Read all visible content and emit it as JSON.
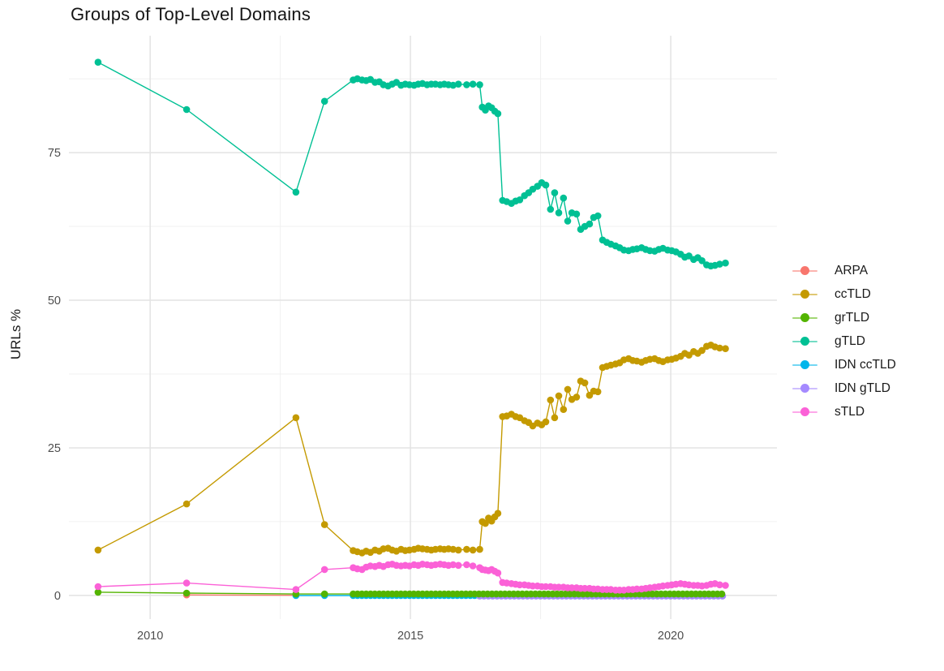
{
  "chart_data": {
    "type": "line",
    "title": "Groups of Top-Level Domains",
    "xlabel": "",
    "ylabel": "URLs %",
    "legend_position": "right",
    "grid": true,
    "background": "#ffffff",
    "grid_major_color": "#e3e3e3",
    "grid_minor_color": "#f0f0f0",
    "axis_text_color": "#4d4d4d",
    "x_axis": {
      "lim": [
        2008.44,
        2022.04
      ],
      "ticks": [
        2010,
        2015,
        2020
      ],
      "tick_labels": [
        "2010",
        "2015",
        "2020"
      ],
      "minor": [
        2012.5,
        2017.5
      ]
    },
    "y_axis": {
      "lim": [
        -4.0,
        94.8
      ],
      "ticks": [
        0,
        25,
        50,
        75
      ],
      "tick_labels": [
        "0",
        "25",
        "50",
        "75"
      ],
      "minor": [
        12.5,
        37.5,
        62.5,
        87.5
      ]
    },
    "draw_order": [
      "ARPA",
      "IDN ccTLD",
      "IDN gTLD",
      "grTLD",
      "sTLD",
      "ccTLD",
      "gTLD"
    ],
    "series": [
      {
        "name": "ARPA",
        "color": "#F8766D",
        "points": [
          [
            2010.7,
            0.1
          ],
          [
            2012.8,
            0.03
          ]
        ]
      },
      {
        "name": "ccTLD",
        "color": "#C49A00",
        "points": [
          [
            2009.0,
            7.7
          ],
          [
            2010.7,
            15.5
          ],
          [
            2012.8,
            30.1
          ],
          [
            2013.35,
            12.0
          ],
          [
            2013.9,
            7.6
          ],
          [
            2013.98,
            7.4
          ],
          [
            2014.07,
            7.2
          ],
          [
            2014.15,
            7.5
          ],
          [
            2014.23,
            7.3
          ],
          [
            2014.32,
            7.7
          ],
          [
            2014.4,
            7.5
          ],
          [
            2014.48,
            7.9
          ],
          [
            2014.57,
            8.0
          ],
          [
            2014.65,
            7.7
          ],
          [
            2014.73,
            7.5
          ],
          [
            2014.82,
            7.8
          ],
          [
            2014.9,
            7.6
          ],
          [
            2014.98,
            7.7
          ],
          [
            2015.07,
            7.8
          ],
          [
            2015.15,
            8.0
          ],
          [
            2015.23,
            7.9
          ],
          [
            2015.32,
            7.8
          ],
          [
            2015.4,
            7.7
          ],
          [
            2015.48,
            7.8
          ],
          [
            2015.57,
            7.9
          ],
          [
            2015.65,
            7.8
          ],
          [
            2015.73,
            7.9
          ],
          [
            2015.82,
            7.8
          ],
          [
            2015.92,
            7.7
          ],
          [
            2016.08,
            7.8
          ],
          [
            2016.2,
            7.7
          ],
          [
            2016.33,
            7.8
          ],
          [
            2016.38,
            12.5
          ],
          [
            2016.44,
            12.2
          ],
          [
            2016.5,
            13.1
          ],
          [
            2016.56,
            12.6
          ],
          [
            2016.62,
            13.3
          ],
          [
            2016.68,
            13.9
          ],
          [
            2016.77,
            30.3
          ],
          [
            2016.85,
            30.4
          ],
          [
            2016.94,
            30.7
          ],
          [
            2017.02,
            30.3
          ],
          [
            2017.1,
            30.1
          ],
          [
            2017.19,
            29.6
          ],
          [
            2017.27,
            29.3
          ],
          [
            2017.35,
            28.7
          ],
          [
            2017.44,
            29.2
          ],
          [
            2017.52,
            28.9
          ],
          [
            2017.6,
            29.4
          ],
          [
            2017.69,
            33.1
          ],
          [
            2017.77,
            30.1
          ],
          [
            2017.85,
            33.8
          ],
          [
            2017.94,
            31.5
          ],
          [
            2018.02,
            34.9
          ],
          [
            2018.1,
            33.2
          ],
          [
            2018.19,
            33.6
          ],
          [
            2018.27,
            36.3
          ],
          [
            2018.35,
            36.0
          ],
          [
            2018.44,
            33.9
          ],
          [
            2018.52,
            34.6
          ],
          [
            2018.6,
            34.5
          ],
          [
            2018.69,
            38.6
          ],
          [
            2018.77,
            38.8
          ],
          [
            2018.85,
            39.0
          ],
          [
            2018.94,
            39.2
          ],
          [
            2019.02,
            39.4
          ],
          [
            2019.1,
            39.9
          ],
          [
            2019.19,
            40.1
          ],
          [
            2019.27,
            39.8
          ],
          [
            2019.35,
            39.7
          ],
          [
            2019.44,
            39.5
          ],
          [
            2019.52,
            39.8
          ],
          [
            2019.6,
            40.0
          ],
          [
            2019.69,
            40.1
          ],
          [
            2019.77,
            39.8
          ],
          [
            2019.85,
            39.6
          ],
          [
            2019.94,
            39.9
          ],
          [
            2020.02,
            40.0
          ],
          [
            2020.1,
            40.2
          ],
          [
            2020.19,
            40.5
          ],
          [
            2020.27,
            41.0
          ],
          [
            2020.35,
            40.7
          ],
          [
            2020.44,
            41.3
          ],
          [
            2020.52,
            41.0
          ],
          [
            2020.6,
            41.5
          ],
          [
            2020.69,
            42.2
          ],
          [
            2020.77,
            42.4
          ],
          [
            2020.85,
            42.1
          ],
          [
            2020.94,
            41.9
          ],
          [
            2021.05,
            41.8
          ]
        ]
      },
      {
        "name": "grTLD",
        "color": "#53B400",
        "points": [
          [
            2009.0,
            0.55
          ],
          [
            2010.7,
            0.4
          ],
          [
            2012.8,
            0.25
          ],
          [
            2013.35,
            0.25
          ]
        ],
        "flat": {
          "from": 2013.9,
          "to": 2021.06,
          "step": 0.0833,
          "value": 0.25
        }
      },
      {
        "name": "gTLD",
        "color": "#00C094",
        "points": [
          [
            2009.0,
            90.3
          ],
          [
            2010.7,
            82.3
          ],
          [
            2012.8,
            68.3
          ],
          [
            2013.35,
            83.7
          ],
          [
            2013.9,
            87.3
          ],
          [
            2013.98,
            87.5
          ],
          [
            2014.07,
            87.3
          ],
          [
            2014.15,
            87.2
          ],
          [
            2014.23,
            87.4
          ],
          [
            2014.32,
            86.9
          ],
          [
            2014.4,
            87.0
          ],
          [
            2014.48,
            86.5
          ],
          [
            2014.57,
            86.3
          ],
          [
            2014.65,
            86.6
          ],
          [
            2014.73,
            86.9
          ],
          [
            2014.82,
            86.4
          ],
          [
            2014.9,
            86.6
          ],
          [
            2014.98,
            86.5
          ],
          [
            2015.07,
            86.4
          ],
          [
            2015.15,
            86.6
          ],
          [
            2015.23,
            86.7
          ],
          [
            2015.32,
            86.5
          ],
          [
            2015.4,
            86.6
          ],
          [
            2015.48,
            86.6
          ],
          [
            2015.57,
            86.5
          ],
          [
            2015.65,
            86.6
          ],
          [
            2015.73,
            86.5
          ],
          [
            2015.82,
            86.4
          ],
          [
            2015.92,
            86.6
          ],
          [
            2016.08,
            86.5
          ],
          [
            2016.2,
            86.6
          ],
          [
            2016.33,
            86.5
          ],
          [
            2016.38,
            82.7
          ],
          [
            2016.44,
            82.2
          ],
          [
            2016.5,
            82.9
          ],
          [
            2016.56,
            82.6
          ],
          [
            2016.62,
            82.0
          ],
          [
            2016.68,
            81.6
          ],
          [
            2016.77,
            66.9
          ],
          [
            2016.85,
            66.7
          ],
          [
            2016.94,
            66.4
          ],
          [
            2017.02,
            66.8
          ],
          [
            2017.1,
            67.0
          ],
          [
            2017.19,
            67.7
          ],
          [
            2017.27,
            68.2
          ],
          [
            2017.35,
            68.8
          ],
          [
            2017.44,
            69.3
          ],
          [
            2017.52,
            69.9
          ],
          [
            2017.6,
            69.5
          ],
          [
            2017.69,
            65.4
          ],
          [
            2017.77,
            68.2
          ],
          [
            2017.85,
            64.8
          ],
          [
            2017.94,
            67.3
          ],
          [
            2018.02,
            63.4
          ],
          [
            2018.1,
            64.8
          ],
          [
            2018.19,
            64.6
          ],
          [
            2018.27,
            62.0
          ],
          [
            2018.35,
            62.5
          ],
          [
            2018.44,
            62.9
          ],
          [
            2018.52,
            64.0
          ],
          [
            2018.6,
            64.3
          ],
          [
            2018.69,
            60.2
          ],
          [
            2018.77,
            59.8
          ],
          [
            2018.85,
            59.5
          ],
          [
            2018.94,
            59.2
          ],
          [
            2019.02,
            58.9
          ],
          [
            2019.1,
            58.5
          ],
          [
            2019.19,
            58.4
          ],
          [
            2019.27,
            58.6
          ],
          [
            2019.35,
            58.7
          ],
          [
            2019.44,
            58.9
          ],
          [
            2019.52,
            58.6
          ],
          [
            2019.6,
            58.4
          ],
          [
            2019.69,
            58.3
          ],
          [
            2019.77,
            58.6
          ],
          [
            2019.85,
            58.8
          ],
          [
            2019.94,
            58.5
          ],
          [
            2020.02,
            58.4
          ],
          [
            2020.1,
            58.2
          ],
          [
            2020.19,
            57.8
          ],
          [
            2020.27,
            57.3
          ],
          [
            2020.35,
            57.5
          ],
          [
            2020.44,
            56.9
          ],
          [
            2020.52,
            57.2
          ],
          [
            2020.6,
            56.7
          ],
          [
            2020.69,
            56.0
          ],
          [
            2020.77,
            55.8
          ],
          [
            2020.85,
            55.9
          ],
          [
            2020.94,
            56.1
          ],
          [
            2021.05,
            56.3
          ]
        ]
      },
      {
        "name": "IDN ccTLD",
        "color": "#00B6EB",
        "points": [
          [
            2012.8,
            -0.02
          ],
          [
            2013.35,
            -0.02
          ]
        ],
        "flat": {
          "from": 2013.9,
          "to": 2021.06,
          "step": 0.0833,
          "value": -0.02
        }
      },
      {
        "name": "IDN gTLD",
        "color": "#A58AFF",
        "points": [],
        "flat": {
          "from": 2016.33,
          "to": 2021.06,
          "step": 0.0833,
          "value": -0.1
        }
      },
      {
        "name": "sTLD",
        "color": "#FB61D7",
        "points": [
          [
            2009.0,
            1.5
          ],
          [
            2010.7,
            2.1
          ],
          [
            2012.8,
            1.0
          ],
          [
            2013.35,
            4.4
          ],
          [
            2013.9,
            4.7
          ],
          [
            2013.98,
            4.5
          ],
          [
            2014.07,
            4.4
          ],
          [
            2014.15,
            4.8
          ],
          [
            2014.23,
            5.0
          ],
          [
            2014.32,
            4.9
          ],
          [
            2014.4,
            5.1
          ],
          [
            2014.48,
            4.9
          ],
          [
            2014.57,
            5.2
          ],
          [
            2014.65,
            5.3
          ],
          [
            2014.73,
            5.1
          ],
          [
            2014.82,
            5.0
          ],
          [
            2014.9,
            5.1
          ],
          [
            2014.98,
            5.0
          ],
          [
            2015.07,
            5.2
          ],
          [
            2015.15,
            5.1
          ],
          [
            2015.23,
            5.3
          ],
          [
            2015.32,
            5.2
          ],
          [
            2015.4,
            5.1
          ],
          [
            2015.48,
            5.2
          ],
          [
            2015.57,
            5.3
          ],
          [
            2015.65,
            5.2
          ],
          [
            2015.73,
            5.1
          ],
          [
            2015.82,
            5.2
          ],
          [
            2015.92,
            5.1
          ],
          [
            2016.08,
            5.2
          ],
          [
            2016.2,
            5.0
          ],
          [
            2016.33,
            4.7
          ],
          [
            2016.38,
            4.4
          ],
          [
            2016.44,
            4.3
          ],
          [
            2016.5,
            4.2
          ],
          [
            2016.56,
            4.4
          ],
          [
            2016.62,
            4.1
          ],
          [
            2016.68,
            3.8
          ],
          [
            2016.77,
            2.2
          ],
          [
            2016.85,
            2.1
          ],
          [
            2016.94,
            2.0
          ],
          [
            2017.02,
            1.9
          ],
          [
            2017.1,
            1.8
          ],
          [
            2017.19,
            1.8
          ],
          [
            2017.27,
            1.7
          ],
          [
            2017.35,
            1.6
          ],
          [
            2017.44,
            1.6
          ],
          [
            2017.52,
            1.5
          ],
          [
            2017.6,
            1.5
          ],
          [
            2017.69,
            1.5
          ],
          [
            2017.77,
            1.4
          ],
          [
            2017.85,
            1.4
          ],
          [
            2017.94,
            1.4
          ],
          [
            2018.02,
            1.3
          ],
          [
            2018.1,
            1.3
          ],
          [
            2018.19,
            1.3
          ],
          [
            2018.27,
            1.2
          ],
          [
            2018.35,
            1.2
          ],
          [
            2018.44,
            1.2
          ],
          [
            2018.52,
            1.1
          ],
          [
            2018.6,
            1.1
          ],
          [
            2018.69,
            1.0
          ],
          [
            2018.77,
            1.0
          ],
          [
            2018.85,
            1.0
          ],
          [
            2018.94,
            0.9
          ],
          [
            2019.02,
            0.9
          ],
          [
            2019.1,
            0.9
          ],
          [
            2019.19,
            1.0
          ],
          [
            2019.27,
            1.0
          ],
          [
            2019.35,
            1.1
          ],
          [
            2019.44,
            1.1
          ],
          [
            2019.52,
            1.2
          ],
          [
            2019.6,
            1.3
          ],
          [
            2019.69,
            1.4
          ],
          [
            2019.77,
            1.5
          ],
          [
            2019.85,
            1.6
          ],
          [
            2019.94,
            1.7
          ],
          [
            2020.02,
            1.8
          ],
          [
            2020.1,
            1.9
          ],
          [
            2020.19,
            2.0
          ],
          [
            2020.27,
            1.9
          ],
          [
            2020.35,
            1.8
          ],
          [
            2020.44,
            1.7
          ],
          [
            2020.52,
            1.7
          ],
          [
            2020.6,
            1.6
          ],
          [
            2020.69,
            1.7
          ],
          [
            2020.77,
            1.9
          ],
          [
            2020.85,
            2.0
          ],
          [
            2020.94,
            1.8
          ],
          [
            2021.05,
            1.7
          ]
        ]
      }
    ]
  }
}
